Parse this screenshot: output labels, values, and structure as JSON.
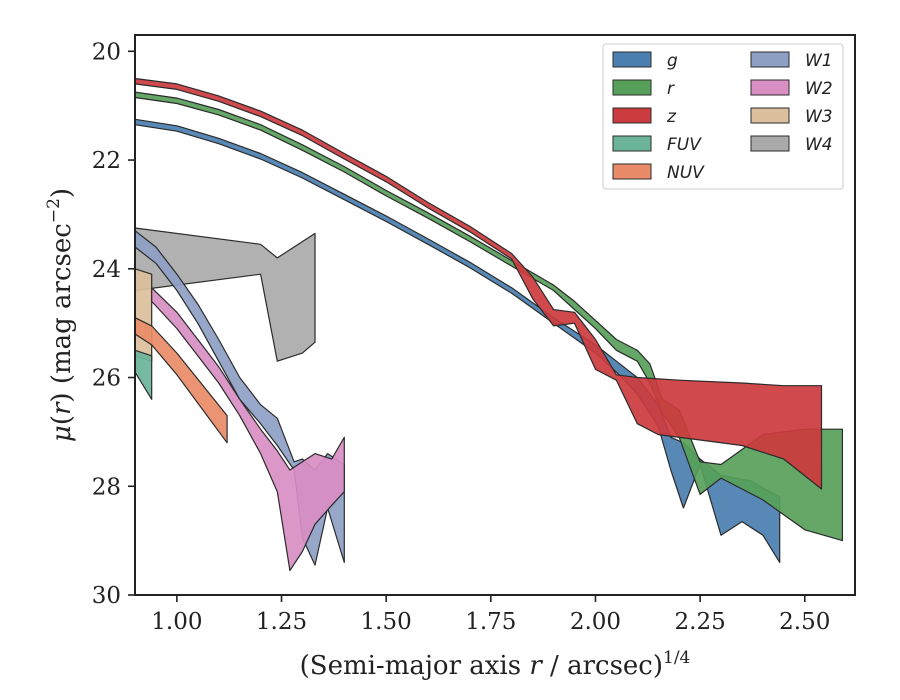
{
  "chart_data": {
    "type": "area",
    "title": "",
    "xlabel": "(Semi-major axis r / arcsec)",
    "xlabel_var": "r",
    "xlabel_exp": "1/4",
    "ylabel": "μ(r) (mag arcsec−2)",
    "ylabel_mu": "μ",
    "ylabel_r": "r",
    "ylabel_mid": ") (mag arcsec",
    "ylabel_exp": "−2",
    "ylabel_close": ")",
    "xlim": [
      0.9,
      2.62
    ],
    "ylim": [
      30.0,
      19.7
    ],
    "y_inverted": true,
    "xticks": [
      1.0,
      1.25,
      1.5,
      1.75,
      2.0,
      2.25,
      2.5
    ],
    "xtick_labels": [
      "1.00",
      "1.25",
      "1.50",
      "1.75",
      "2.00",
      "2.25",
      "2.50"
    ],
    "yticks": [
      20,
      22,
      24,
      26,
      28,
      30
    ],
    "ytick_labels": [
      "20",
      "22",
      "24",
      "26",
      "28",
      "30"
    ],
    "grid": false,
    "legend_placement": "top-right",
    "legend_columns": 2,
    "series": [
      {
        "name": "W4",
        "color": "#aaaaaa",
        "upper": [
          [
            0.9,
            23.25
          ],
          [
            1.2,
            23.55
          ],
          [
            1.24,
            23.8
          ],
          [
            1.33,
            23.35
          ]
        ],
        "lower": [
          [
            0.9,
            24.4
          ],
          [
            1.2,
            24.1
          ],
          [
            1.24,
            25.7
          ],
          [
            1.3,
            25.55
          ],
          [
            1.33,
            25.35
          ]
        ]
      },
      {
        "name": "W3",
        "color": "#dcbf9c",
        "upper": [
          [
            0.9,
            24.0
          ],
          [
            0.94,
            24.1
          ]
        ],
        "lower": [
          [
            0.9,
            25.6
          ],
          [
            0.94,
            25.7
          ]
        ]
      },
      {
        "name": "FUV",
        "color": "#6bb49a",
        "upper": [
          [
            0.9,
            25.5
          ],
          [
            0.94,
            25.6
          ]
        ],
        "lower": [
          [
            0.9,
            25.9
          ],
          [
            0.94,
            26.4
          ]
        ]
      },
      {
        "name": "NUV",
        "color": "#e98b68",
        "upper": [
          [
            0.9,
            24.9
          ],
          [
            0.94,
            25.05
          ],
          [
            1.0,
            25.55
          ],
          [
            1.12,
            26.7
          ]
        ],
        "lower": [
          [
            0.9,
            25.2
          ],
          [
            0.94,
            25.4
          ],
          [
            1.0,
            25.95
          ],
          [
            1.12,
            27.2
          ]
        ]
      },
      {
        "name": "W1",
        "color": "#8e9fc4",
        "upper": [
          [
            0.9,
            23.3
          ],
          [
            0.95,
            23.6
          ],
          [
            1.0,
            24.1
          ],
          [
            1.05,
            24.65
          ],
          [
            1.1,
            25.3
          ],
          [
            1.15,
            26.0
          ],
          [
            1.2,
            26.5
          ],
          [
            1.24,
            26.75
          ],
          [
            1.28,
            27.55
          ],
          [
            1.3,
            27.5
          ],
          [
            1.33,
            27.7
          ],
          [
            1.36,
            27.4
          ],
          [
            1.4,
            27.6
          ]
        ],
        "lower": [
          [
            0.9,
            23.6
          ],
          [
            0.95,
            23.9
          ],
          [
            1.0,
            24.4
          ],
          [
            1.05,
            25.0
          ],
          [
            1.1,
            25.7
          ],
          [
            1.15,
            26.4
          ],
          [
            1.2,
            26.85
          ],
          [
            1.24,
            27.25
          ],
          [
            1.28,
            27.7
          ],
          [
            1.3,
            28.95
          ],
          [
            1.33,
            29.45
          ],
          [
            1.36,
            28.4
          ],
          [
            1.4,
            29.4
          ]
        ]
      },
      {
        "name": "W2",
        "color": "#d98ec4",
        "upper": [
          [
            0.94,
            24.35
          ],
          [
            1.0,
            24.8
          ],
          [
            1.05,
            25.3
          ],
          [
            1.1,
            25.8
          ],
          [
            1.15,
            26.4
          ],
          [
            1.2,
            26.95
          ],
          [
            1.24,
            27.35
          ],
          [
            1.27,
            27.7
          ],
          [
            1.3,
            27.55
          ],
          [
            1.33,
            27.4
          ],
          [
            1.37,
            27.5
          ],
          [
            1.4,
            27.1
          ]
        ],
        "lower": [
          [
            0.94,
            24.6
          ],
          [
            1.0,
            25.1
          ],
          [
            1.05,
            25.6
          ],
          [
            1.1,
            26.1
          ],
          [
            1.15,
            26.7
          ],
          [
            1.2,
            27.4
          ],
          [
            1.24,
            28.1
          ],
          [
            1.27,
            29.55
          ],
          [
            1.3,
            29.2
          ],
          [
            1.33,
            28.7
          ],
          [
            1.37,
            28.35
          ],
          [
            1.4,
            28.1
          ]
        ]
      },
      {
        "name": "g",
        "color": "#4a7fb0",
        "upper": [
          [
            0.9,
            21.25
          ],
          [
            1.0,
            21.37
          ],
          [
            1.1,
            21.6
          ],
          [
            1.2,
            21.88
          ],
          [
            1.3,
            22.23
          ],
          [
            1.4,
            22.63
          ],
          [
            1.5,
            23.03
          ],
          [
            1.6,
            23.45
          ],
          [
            1.7,
            23.88
          ],
          [
            1.8,
            24.35
          ],
          [
            1.9,
            24.9
          ],
          [
            2.0,
            25.4
          ],
          [
            2.05,
            25.7
          ],
          [
            2.1,
            26.0
          ],
          [
            2.15,
            26.5
          ],
          [
            2.18,
            27.1
          ],
          [
            2.21,
            27.2
          ],
          [
            2.25,
            27.5
          ],
          [
            2.3,
            27.8
          ],
          [
            2.37,
            27.9
          ],
          [
            2.44,
            28.2
          ]
        ],
        "lower": [
          [
            0.9,
            21.35
          ],
          [
            1.0,
            21.47
          ],
          [
            1.1,
            21.7
          ],
          [
            1.2,
            21.98
          ],
          [
            1.3,
            22.33
          ],
          [
            1.4,
            22.73
          ],
          [
            1.5,
            23.13
          ],
          [
            1.6,
            23.55
          ],
          [
            1.7,
            23.98
          ],
          [
            1.8,
            24.45
          ],
          [
            1.9,
            25.0
          ],
          [
            2.0,
            25.55
          ],
          [
            2.05,
            25.9
          ],
          [
            2.1,
            26.3
          ],
          [
            2.15,
            26.9
          ],
          [
            2.18,
            27.7
          ],
          [
            2.21,
            28.4
          ],
          [
            2.25,
            27.6
          ],
          [
            2.3,
            28.9
          ],
          [
            2.35,
            28.65
          ],
          [
            2.4,
            28.9
          ],
          [
            2.44,
            29.4
          ]
        ]
      },
      {
        "name": "r",
        "color": "#57a05a",
        "upper": [
          [
            0.9,
            20.75
          ],
          [
            1.0,
            20.86
          ],
          [
            1.1,
            21.07
          ],
          [
            1.2,
            21.35
          ],
          [
            1.3,
            21.72
          ],
          [
            1.4,
            22.12
          ],
          [
            1.5,
            22.56
          ],
          [
            1.6,
            22.97
          ],
          [
            1.7,
            23.4
          ],
          [
            1.8,
            23.85
          ],
          [
            1.9,
            24.3
          ],
          [
            1.95,
            24.6
          ],
          [
            2.0,
            24.95
          ],
          [
            2.05,
            25.3
          ],
          [
            2.1,
            25.5
          ],
          [
            2.13,
            25.75
          ],
          [
            2.16,
            26.4
          ],
          [
            2.2,
            26.6
          ],
          [
            2.25,
            27.55
          ],
          [
            2.3,
            27.6
          ],
          [
            2.4,
            27.05
          ],
          [
            2.5,
            26.95
          ],
          [
            2.59,
            26.95
          ]
        ],
        "lower": [
          [
            0.9,
            20.85
          ],
          [
            1.0,
            20.96
          ],
          [
            1.1,
            21.17
          ],
          [
            1.2,
            21.45
          ],
          [
            1.3,
            21.82
          ],
          [
            1.4,
            22.22
          ],
          [
            1.5,
            22.66
          ],
          [
            1.6,
            23.07
          ],
          [
            1.7,
            23.5
          ],
          [
            1.8,
            23.95
          ],
          [
            1.9,
            24.4
          ],
          [
            1.95,
            24.75
          ],
          [
            2.0,
            25.1
          ],
          [
            2.05,
            25.5
          ],
          [
            2.1,
            25.7
          ],
          [
            2.13,
            26.1
          ],
          [
            2.16,
            26.65
          ],
          [
            2.2,
            27.1
          ],
          [
            2.25,
            28.15
          ],
          [
            2.3,
            27.85
          ],
          [
            2.4,
            28.25
          ],
          [
            2.5,
            28.8
          ],
          [
            2.59,
            29.0
          ]
        ]
      },
      {
        "name": "z",
        "color": "#cc3b3e",
        "upper": [
          [
            0.9,
            20.5
          ],
          [
            1.0,
            20.6
          ],
          [
            1.1,
            20.82
          ],
          [
            1.2,
            21.1
          ],
          [
            1.3,
            21.45
          ],
          [
            1.4,
            21.88
          ],
          [
            1.5,
            22.3
          ],
          [
            1.6,
            22.78
          ],
          [
            1.7,
            23.22
          ],
          [
            1.8,
            23.72
          ],
          [
            1.85,
            24.15
          ],
          [
            1.9,
            24.75
          ],
          [
            1.95,
            24.8
          ],
          [
            2.0,
            25.3
          ],
          [
            2.05,
            25.95
          ],
          [
            2.1,
            26.0
          ],
          [
            2.2,
            26.05
          ],
          [
            2.35,
            26.1
          ],
          [
            2.45,
            26.15
          ],
          [
            2.54,
            26.15
          ]
        ],
        "lower": [
          [
            0.9,
            20.6
          ],
          [
            1.0,
            20.7
          ],
          [
            1.1,
            20.92
          ],
          [
            1.2,
            21.2
          ],
          [
            1.3,
            21.55
          ],
          [
            1.4,
            21.98
          ],
          [
            1.5,
            22.4
          ],
          [
            1.6,
            22.88
          ],
          [
            1.7,
            23.32
          ],
          [
            1.8,
            23.82
          ],
          [
            1.85,
            24.55
          ],
          [
            1.9,
            25.05
          ],
          [
            1.95,
            25.0
          ],
          [
            2.0,
            25.85
          ],
          [
            2.05,
            26.05
          ],
          [
            2.1,
            26.85
          ],
          [
            2.15,
            27.05
          ],
          [
            2.25,
            27.15
          ],
          [
            2.35,
            27.25
          ],
          [
            2.45,
            27.5
          ],
          [
            2.54,
            28.05
          ]
        ]
      }
    ],
    "legend": [
      {
        "label": "g",
        "color": "#4a7fb0"
      },
      {
        "label": "r",
        "color": "#57a05a"
      },
      {
        "label": "z",
        "color": "#cc3b3e"
      },
      {
        "label": "FUV",
        "color": "#6bb49a"
      },
      {
        "label": "NUV",
        "color": "#e98b68"
      },
      {
        "label": "W1",
        "color": "#8e9fc4"
      },
      {
        "label": "W2",
        "color": "#d98ec4"
      },
      {
        "label": "W3",
        "color": "#dcbf9c"
      },
      {
        "label": "W4",
        "color": "#aaaaaa"
      }
    ]
  }
}
